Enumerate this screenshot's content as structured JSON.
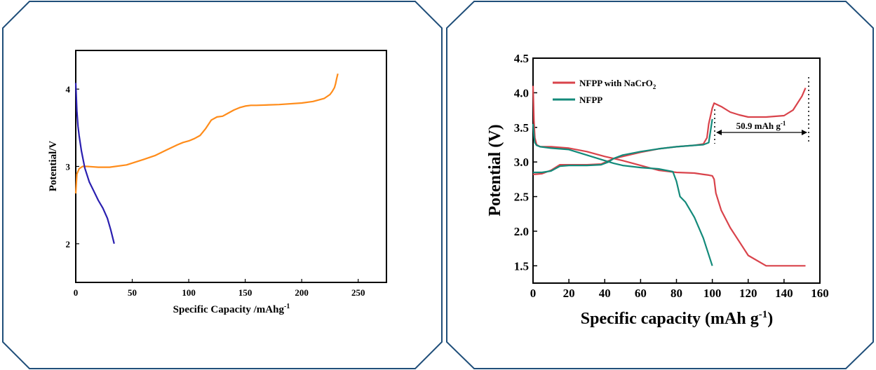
{
  "colors": {
    "frame": "#1f4e79",
    "orange": "#ff8c1a",
    "blue": "#2a1fb0",
    "red": "#d9434b",
    "teal": "#138a7a"
  },
  "chart_data": [
    {
      "type": "line",
      "xlabel": "Specific Capacity /mAhg",
      "xlabel_sup": "-1",
      "ylabel": "Potential/V",
      "xlim": [
        0,
        275
      ],
      "ylim": [
        1.5,
        4.5
      ],
      "xticks": [
        "0",
        "50",
        "100",
        "150",
        "200",
        "250"
      ],
      "yticks": [
        "2",
        "3",
        "4"
      ],
      "series": [
        {
          "color": "orange",
          "x": [
            0,
            1,
            3,
            6,
            10,
            20,
            30,
            45,
            60,
            70,
            80,
            90,
            95,
            100,
            105,
            110,
            115,
            120,
            125,
            130,
            135,
            140,
            145,
            150,
            155,
            160,
            180,
            200,
            210,
            220,
            225,
            227,
            229,
            230,
            231,
            232
          ],
          "y": [
            2.65,
            2.9,
            2.97,
            3.0,
            3.0,
            2.99,
            2.99,
            3.02,
            3.09,
            3.14,
            3.21,
            3.28,
            3.31,
            3.33,
            3.36,
            3.4,
            3.49,
            3.6,
            3.64,
            3.65,
            3.69,
            3.73,
            3.76,
            3.78,
            3.79,
            3.79,
            3.8,
            3.82,
            3.84,
            3.88,
            3.93,
            3.97,
            4.02,
            4.07,
            4.14,
            4.2
          ]
        },
        {
          "color": "blue",
          "x": [
            0,
            1,
            2,
            3,
            5,
            8,
            12,
            16,
            20,
            24,
            28,
            31,
            33,
            34
          ],
          "y": [
            4.08,
            3.72,
            3.52,
            3.4,
            3.2,
            2.98,
            2.8,
            2.68,
            2.56,
            2.46,
            2.33,
            2.18,
            2.06,
            2.0
          ]
        }
      ]
    },
    {
      "type": "line",
      "xlabel": "Specific capacity (mAh g",
      "xlabel_sup": "-1",
      "xlabel_end": ")",
      "ylabel": "Potential (V)",
      "xlim": [
        0,
        160
      ],
      "ylim": [
        1.25,
        4.5
      ],
      "xticks": [
        "0",
        "20",
        "40",
        "60",
        "80",
        "100",
        "120",
        "140",
        "160"
      ],
      "yticks": [
        "1.5",
        "2.0",
        "2.5",
        "3.0",
        "3.5",
        "4.0",
        "4.5"
      ],
      "legend": [
        {
          "label": "NFPP with NaCrO",
          "sub": "2",
          "color": "red"
        },
        {
          "label": "NFPP",
          "color": "teal"
        }
      ],
      "annotation": {
        "text": "50.9 mAh g",
        "sup": "-1"
      },
      "series": [
        {
          "name": "NFPP with NaCrO2",
          "color": "red",
          "x": [
            0,
            0.5,
            1,
            2,
            4,
            10,
            20,
            30,
            40,
            45,
            50,
            60,
            70,
            80,
            90,
            95,
            98,
            100,
            101,
            102,
            105,
            110,
            115,
            120,
            130,
            140,
            145,
            150,
            152
          ],
          "y": [
            4.1,
            3.6,
            3.35,
            3.25,
            3.22,
            3.22,
            3.2,
            3.15,
            3.08,
            3.05,
            3.02,
            2.95,
            2.88,
            2.85,
            2.84,
            2.82,
            2.81,
            2.8,
            2.75,
            2.55,
            2.3,
            2.05,
            1.85,
            1.65,
            1.5,
            1.5,
            1.5,
            1.5,
            1.5
          ]
        },
        {
          "name": "NFPP with NaCrO2 (charge)",
          "color": "red",
          "x": [
            0,
            5,
            10,
            15,
            20,
            30,
            38,
            45,
            50,
            60,
            70,
            80,
            90,
            95,
            97,
            98,
            100,
            101,
            105,
            110,
            115,
            120,
            130,
            140,
            145,
            150,
            152
          ],
          "y": [
            2.82,
            2.83,
            2.88,
            2.96,
            2.96,
            2.96,
            2.97,
            3.05,
            3.08,
            3.14,
            3.19,
            3.22,
            3.24,
            3.26,
            3.35,
            3.55,
            3.78,
            3.85,
            3.8,
            3.72,
            3.68,
            3.65,
            3.65,
            3.67,
            3.75,
            3.95,
            4.07
          ]
        },
        {
          "name": "NFPP",
          "color": "teal",
          "x": [
            0,
            0.5,
            1,
            2,
            4,
            10,
            20,
            30,
            40,
            45,
            50,
            60,
            70,
            78,
            80,
            82,
            85,
            90,
            95,
            100
          ],
          "y": [
            3.55,
            3.38,
            3.28,
            3.24,
            3.22,
            3.2,
            3.18,
            3.1,
            3.02,
            2.98,
            2.95,
            2.92,
            2.9,
            2.86,
            2.72,
            2.5,
            2.42,
            2.2,
            1.9,
            1.5
          ]
        },
        {
          "name": "NFPP (charge)",
          "color": "teal",
          "x": [
            0,
            5,
            10,
            15,
            20,
            30,
            38,
            42,
            45,
            50,
            60,
            70,
            80,
            90,
            95,
            98,
            99,
            100
          ],
          "y": [
            2.85,
            2.85,
            2.87,
            2.94,
            2.95,
            2.95,
            2.96,
            3.0,
            3.05,
            3.1,
            3.15,
            3.19,
            3.22,
            3.24,
            3.25,
            3.28,
            3.45,
            3.62
          ]
        }
      ]
    }
  ]
}
